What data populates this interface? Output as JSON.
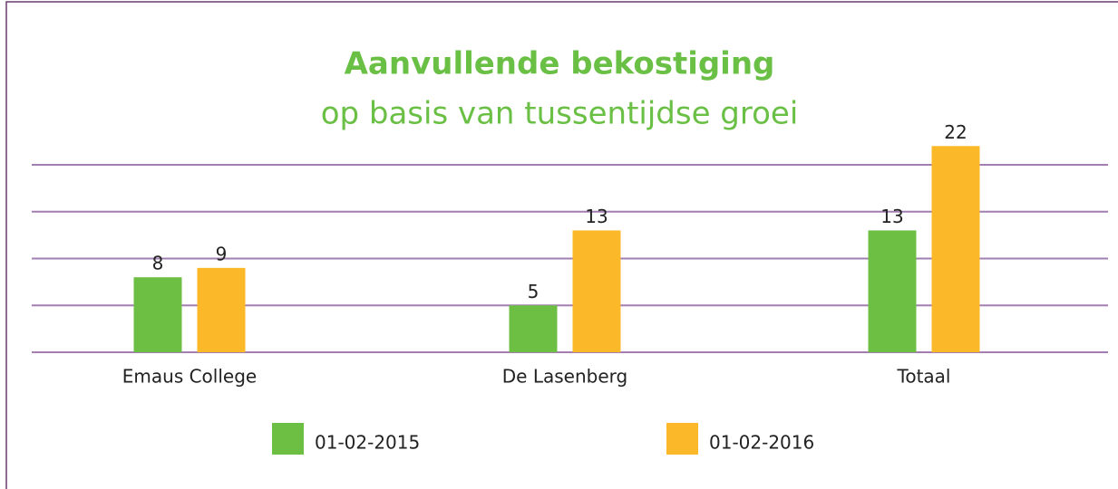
{
  "chart_data": {
    "type": "bar",
    "title": "Aanvullende bekostiging",
    "subtitle": "op basis van tussentijdse groei",
    "categories": [
      "Emaus College",
      "De Lasenberg",
      "Totaal"
    ],
    "series": [
      {
        "name": "01-02-2015",
        "color": "#6dbf44",
        "values": [
          8,
          5,
          13
        ]
      },
      {
        "name": "01-02-2016",
        "color": "#fbb829",
        "values": [
          9,
          13,
          22
        ]
      }
    ],
    "ylim": [
      0,
      20
    ],
    "yticks": [
      0,
      5,
      10,
      15,
      20
    ],
    "grid": true
  }
}
